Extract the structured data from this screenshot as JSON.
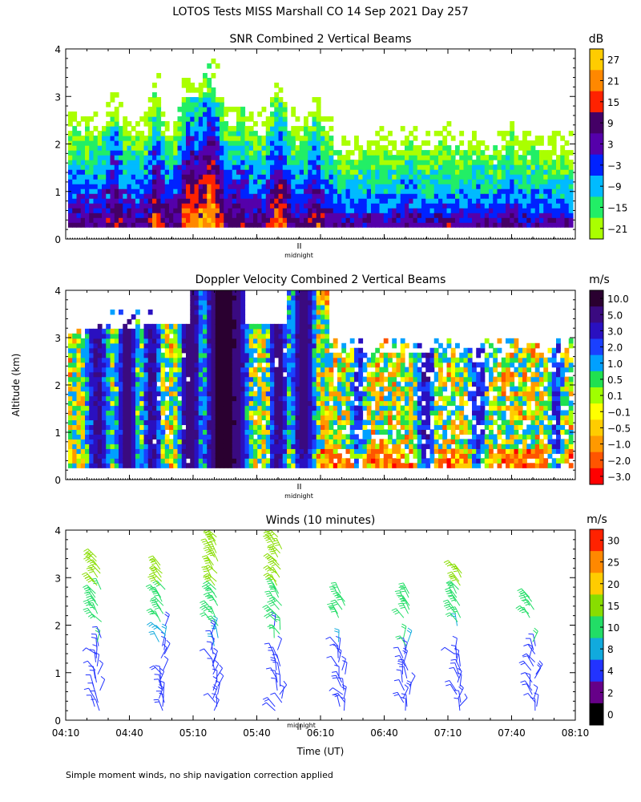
{
  "figure_title": "LOTOS Tests MISS Marshall CO  14 Sep 2021 Day 257",
  "shared": {
    "ylabel": "Altitude (km)",
    "xlabel": "Time (UT)",
    "midnight_label": "midnight",
    "footnote": "Simple moment winds, no ship navigation correction applied"
  },
  "chart_data": [
    {
      "type": "heatmap",
      "title": "SNR Combined 2 Vertical Beams",
      "colorbar_unit": "dB",
      "colorbar_ticks": [
        "27",
        "21",
        "15",
        "9",
        "3",
        "−3",
        "−9",
        "−15",
        "−21"
      ],
      "colorbar_colors": [
        "#ffcc00",
        "#ff8800",
        "#ff2200",
        "#440066",
        "#5500aa",
        "#0022ff",
        "#00bbff",
        "#22ee66",
        "#aaff00"
      ],
      "x_range_minutes": [
        0,
        240
      ],
      "yticks": [
        "0",
        "1",
        "2",
        "3",
        "4"
      ],
      "ylim": [
        0,
        4
      ],
      "data_altitude_range_km": [
        0.25,
        4.0
      ],
      "midnight_minutes": 110,
      "grid": false
    },
    {
      "type": "heatmap",
      "title": "Doppler Velocity Combined 2 Vertical Beams",
      "colorbar_unit": "m/s",
      "colorbar_ticks": [
        "10.0",
        "5.0",
        "3.0",
        "2.0",
        "1.0",
        "0.5",
        "0.1",
        "−0.1",
        "−0.5",
        "−1.0",
        "−2.0",
        "−3.0"
      ],
      "colorbar_colors": [
        "#2a0030",
        "#3a0a80",
        "#2a10c0",
        "#1a40ff",
        "#00a0ff",
        "#20e050",
        "#a0ff00",
        "#ffff00",
        "#ffcc00",
        "#ff9900",
        "#ff5500",
        "#ff0000"
      ],
      "x_range_minutes": [
        0,
        240
      ],
      "yticks": [
        "0",
        "1",
        "2",
        "3",
        "4"
      ],
      "ylim": [
        0,
        4
      ],
      "midnight_minutes": 110,
      "grid": false
    },
    {
      "type": "scatter",
      "title": "Winds (10 minutes)",
      "colorbar_unit": "m/s",
      "colorbar_ticks": [
        "30",
        "25",
        "20",
        "15",
        "10",
        "8",
        "4",
        "2",
        "0"
      ],
      "colorbar_colors": [
        "#ff2200",
        "#ff8800",
        "#ffcc00",
        "#88dd00",
        "#22dd66",
        "#11aadd",
        "#2233ff",
        "#660088",
        "#000000"
      ],
      "xticks": [
        "04:10",
        "04:40",
        "05:10",
        "05:40",
        "06:10",
        "06:40",
        "07:10",
        "07:40",
        "08:10"
      ],
      "x_range": [
        "04:10",
        "08:10"
      ],
      "yticks": [
        "0",
        "1",
        "2",
        "3",
        "4"
      ],
      "ylim": [
        0,
        4
      ],
      "midnight_minutes": 110,
      "profile_times": [
        "04:25",
        "04:55",
        "05:20",
        "05:50",
        "06:20",
        "06:50",
        "07:15",
        "07:50"
      ],
      "profiles": [
        {
          "time": "04:25",
          "top_km": 3.45,
          "gaps": [
            [
              1.8,
              2.0
            ]
          ]
        },
        {
          "time": "04:55",
          "top_km": 3.3,
          "gaps": [
            [
              1.1,
              1.3
            ]
          ]
        },
        {
          "time": "05:20",
          "top_km": 3.9,
          "gaps": []
        },
        {
          "time": "05:50",
          "top_km": 3.9,
          "gaps": [
            [
              1.5,
              1.7
            ]
          ]
        },
        {
          "time": "06:20",
          "top_km": 2.7,
          "gaps": [
            [
              2.1,
              1.7
            ]
          ]
        },
        {
          "time": "06:50",
          "top_km": 2.7,
          "gaps": [
            [
              2.1,
              1.75
            ]
          ]
        },
        {
          "time": "07:15",
          "top_km": 3.2,
          "gaps": [
            [
              1.9,
              1.5
            ]
          ]
        },
        {
          "time": "07:50",
          "top_km": 2.6,
          "gaps": [
            [
              2.1,
              1.7
            ]
          ]
        }
      ]
    }
  ]
}
